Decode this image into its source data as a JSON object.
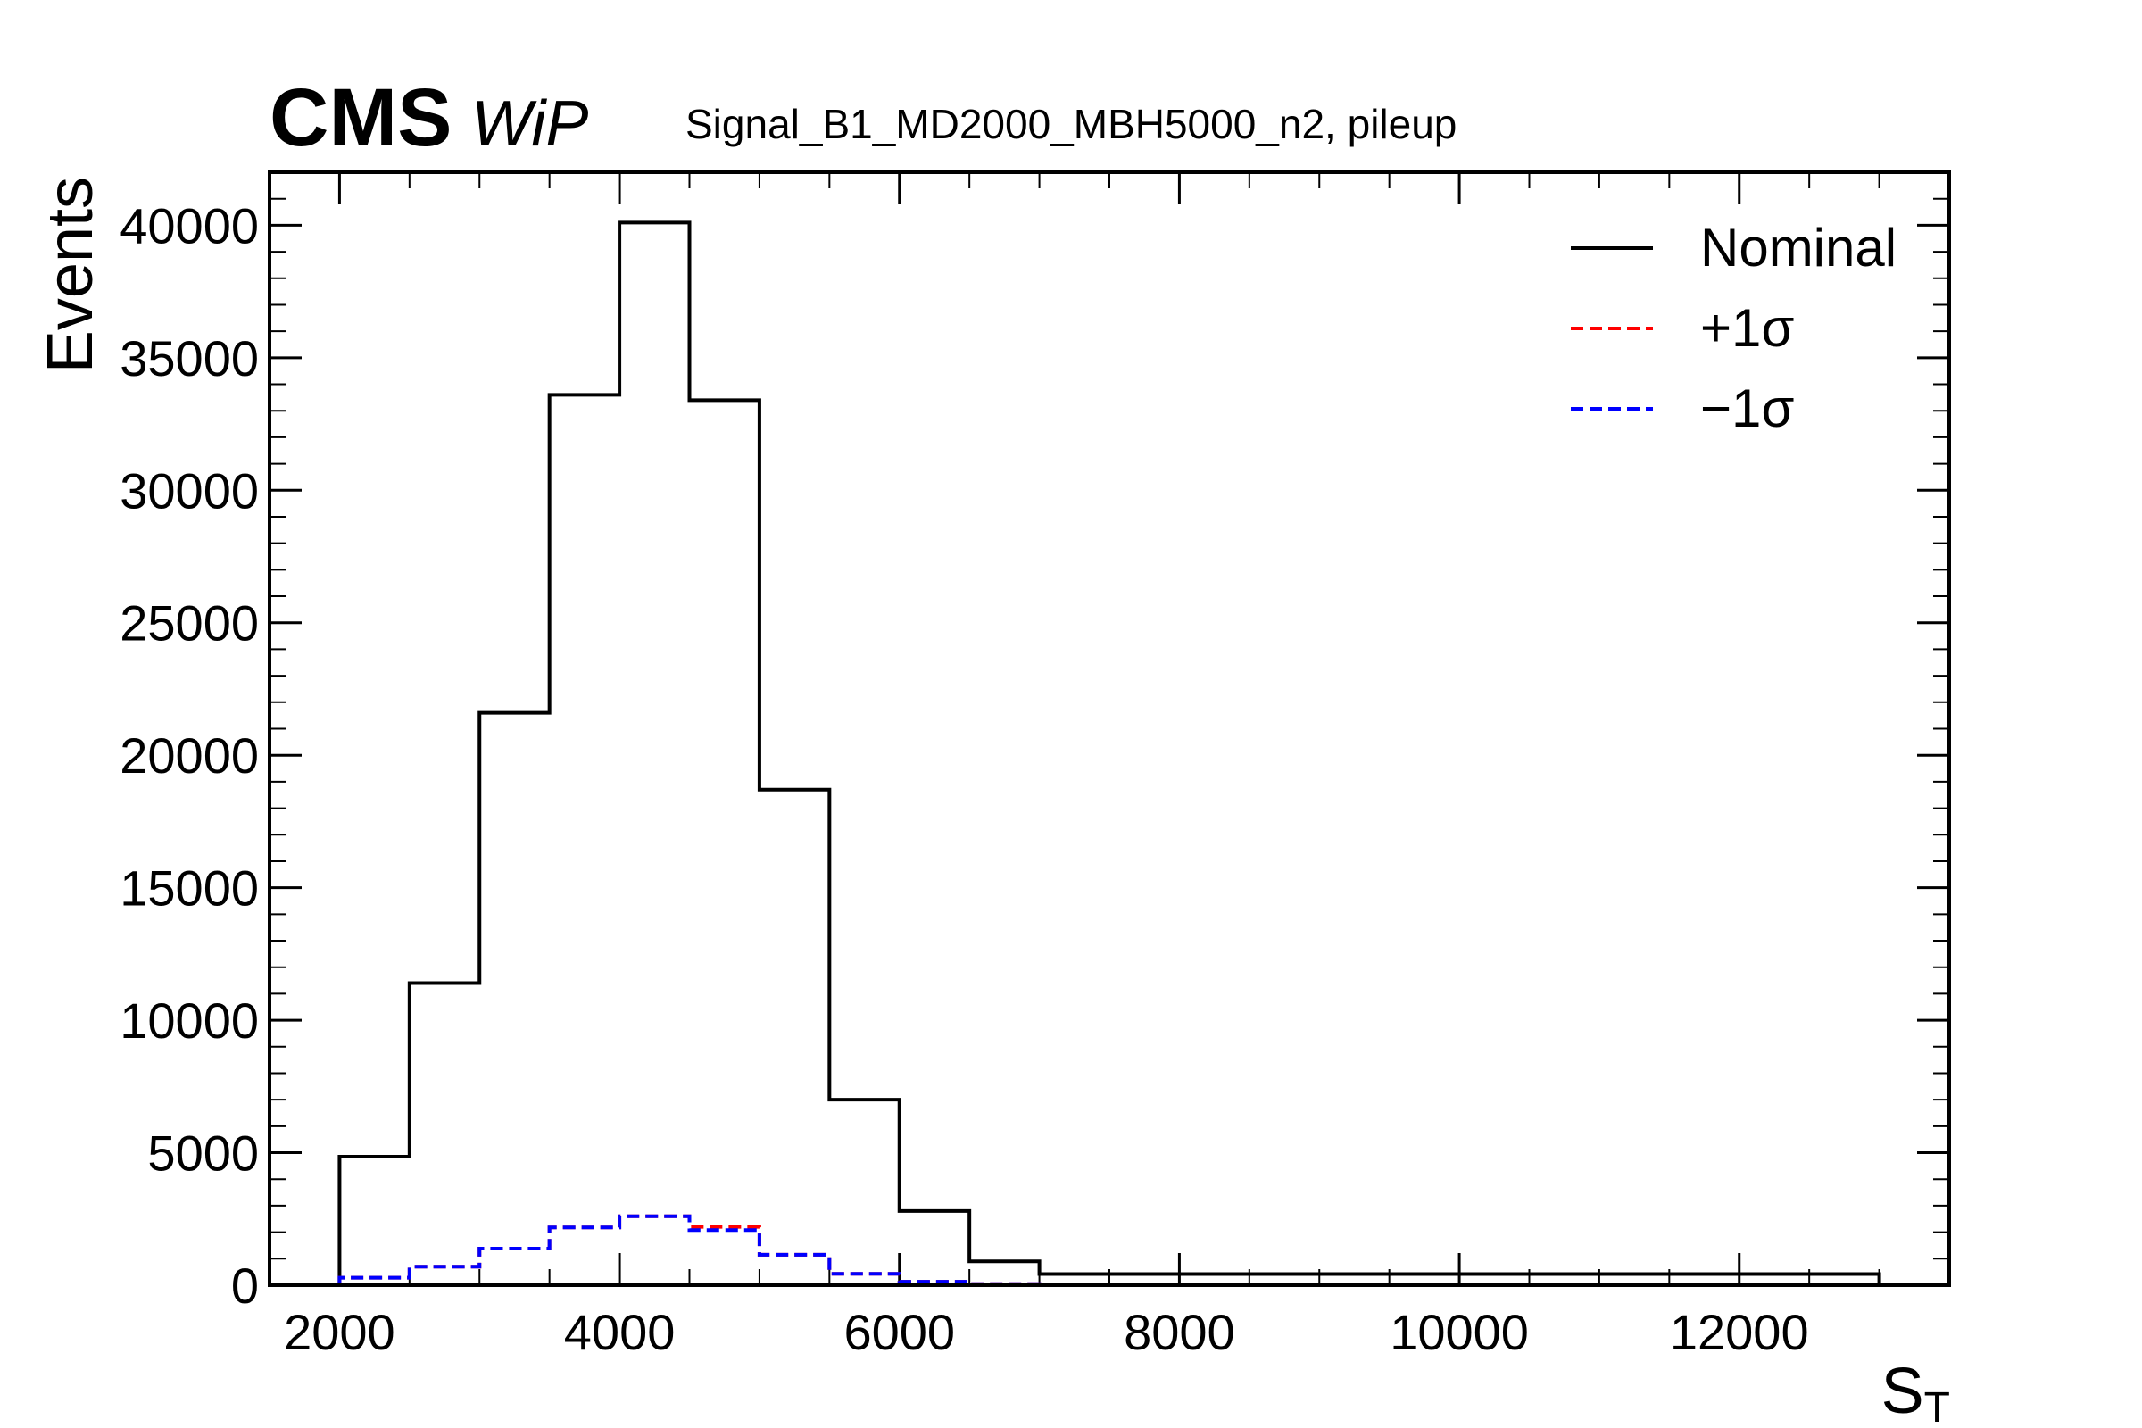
{
  "header": {
    "experiment": "CMS",
    "status": "WiP",
    "title": "Signal_B1_MD2000_MBH5000_n2, pileup"
  },
  "chart_data": {
    "type": "step",
    "xlabel": "S",
    "xlabel_sub": "T",
    "ylabel": "Events",
    "xlim": [
      1500,
      13500
    ],
    "ylim": [
      0,
      42000
    ],
    "x_ticks": [
      2000,
      4000,
      6000,
      8000,
      10000,
      12000
    ],
    "y_ticks": [
      0,
      5000,
      10000,
      15000,
      20000,
      25000,
      30000,
      35000,
      40000
    ],
    "bin_edges": [
      2000,
      2500,
      3000,
      3500,
      4000,
      4500,
      5000,
      5500,
      6000,
      6500,
      7000,
      13000
    ],
    "grid": false,
    "legend_position": "top-right",
    "series": [
      {
        "name": "Nominal",
        "color": "#000000",
        "style": "solid",
        "values": [
          4850,
          11400,
          21600,
          33600,
          40100,
          33400,
          18700,
          7000,
          2800,
          900,
          420
        ]
      },
      {
        "name": "+1σ",
        "color": "#ff0000",
        "style": "dashed",
        "values": [
          280,
          700,
          1380,
          2180,
          2600,
          2200,
          1150,
          430,
          130,
          40,
          12
        ]
      },
      {
        "name": "−1σ",
        "color": "#0000ff",
        "style": "dashed",
        "values": [
          280,
          700,
          1380,
          2180,
          2600,
          2080,
          1150,
          430,
          130,
          40,
          12
        ]
      }
    ]
  }
}
